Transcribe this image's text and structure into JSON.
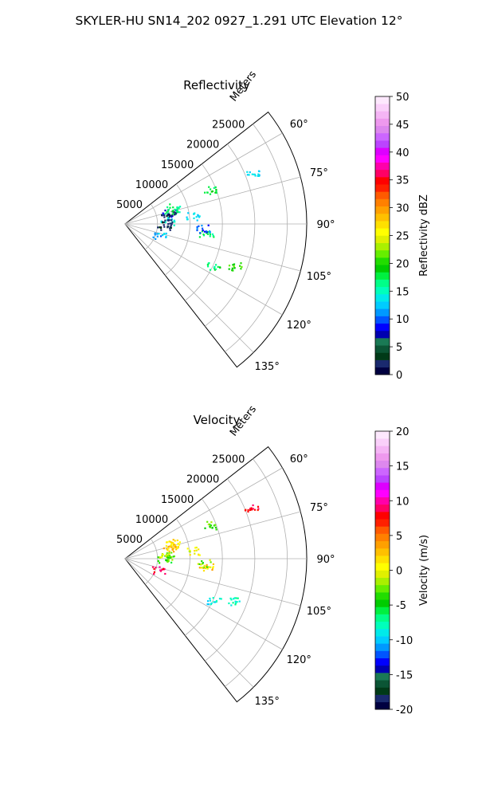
{
  "figure": {
    "suptitle": "SKYLER-HU  SN14_202  0927_1.291 UTC Elevation 12°"
  },
  "chart_data": [
    {
      "type": "polar-sector",
      "title": "Reflectivity",
      "radial_label": "Meters",
      "radial_ticks": [
        "5000",
        "10000",
        "15000",
        "20000",
        "25000"
      ],
      "radial_tick_values": [
        5000,
        10000,
        15000,
        20000,
        25000
      ],
      "rmax": 28000,
      "azimuth_ticks": [
        "60°",
        "75°",
        "90°",
        "105°",
        "120°",
        "135°"
      ],
      "azimuth_tick_values": [
        60,
        75,
        90,
        105,
        120,
        135
      ],
      "azimuth_range": [
        52,
        142
      ],
      "grid": true,
      "colorbar": {
        "label": "Reflectivity dBZ",
        "range": [
          0,
          50
        ],
        "ticks": [
          "0",
          "5",
          "10",
          "15",
          "20",
          "25",
          "30",
          "35",
          "40",
          "45",
          "50"
        ],
        "tick_values": [
          0,
          5,
          10,
          15,
          20,
          25,
          30,
          35,
          40,
          45,
          50
        ],
        "colors": [
          "#000040",
          "#1a2a6e",
          "#003a18",
          "#0b5535",
          "#1a7a55",
          "#0000b0",
          "#0000ff",
          "#0055ff",
          "#0099ff",
          "#00ccff",
          "#00eaea",
          "#00ffbb",
          "#00ff88",
          "#00f040",
          "#00cc00",
          "#22dd00",
          "#66ee00",
          "#aaf000",
          "#e0f000",
          "#ffff00",
          "#ffe000",
          "#ffc000",
          "#ffa000",
          "#ff8000",
          "#ff5a00",
          "#ff2000",
          "#ff0000",
          "#ff0066",
          "#ff00aa",
          "#ff00ff",
          "#dd00ff",
          "#bb44ff",
          "#cc66ff",
          "#dd88ee",
          "#ee99ee",
          "#f5b5f5",
          "#fad0fa",
          "#fde8fd"
        ]
      },
      "echoes": [
        {
          "azimuth": 75,
          "range": 7000,
          "value": 8
        },
        {
          "azimuth": 73,
          "range": 7300,
          "value": 17
        },
        {
          "azimuth": 77,
          "range": 6800,
          "value": 2
        },
        {
          "azimuth": 71,
          "range": 7800,
          "value": 16
        },
        {
          "azimuth": 86,
          "range": 6500,
          "value": 14
        },
        {
          "azimuth": 88,
          "range": 6200,
          "value": 1
        },
        {
          "azimuth": 92,
          "range": 6000,
          "value": 3
        },
        {
          "azimuth": 83,
          "range": 10500,
          "value": 13
        },
        {
          "azimuth": 68,
          "range": 14000,
          "value": 18
        },
        {
          "azimuth": 68,
          "range": 21000,
          "value": 13
        },
        {
          "azimuth": 96,
          "range": 12500,
          "value": 17
        },
        {
          "azimuth": 107,
          "range": 5500,
          "value": 12
        },
        {
          "azimuth": 115,
          "range": 15000,
          "value": 17
        },
        {
          "azimuth": 111,
          "range": 18000,
          "value": 20
        },
        {
          "azimuth": 93,
          "range": 12000,
          "value": 10
        }
      ]
    },
    {
      "type": "polar-sector",
      "title": "Velocity",
      "radial_label": "Meters",
      "radial_ticks": [
        "5000",
        "10000",
        "15000",
        "20000",
        "25000"
      ],
      "radial_tick_values": [
        5000,
        10000,
        15000,
        20000,
        25000
      ],
      "rmax": 28000,
      "azimuth_ticks": [
        "60°",
        "75°",
        "90°",
        "105°",
        "120°",
        "135°"
      ],
      "azimuth_tick_values": [
        60,
        75,
        90,
        105,
        120,
        135
      ],
      "azimuth_range": [
        52,
        142
      ],
      "grid": true,
      "colorbar": {
        "label": "Velocity (m/s)",
        "range": [
          -20,
          20
        ],
        "ticks": [
          "-20",
          "-15",
          "-10",
          "-5",
          "0",
          "5",
          "10",
          "15",
          "20"
        ],
        "tick_values": [
          -20,
          -15,
          -10,
          -5,
          0,
          5,
          10,
          15,
          20
        ],
        "colors": [
          "#000040",
          "#1a2a6e",
          "#003a18",
          "#0b5535",
          "#1a7a55",
          "#0000b0",
          "#0000ff",
          "#0055ff",
          "#0099ff",
          "#00ccff",
          "#00eaea",
          "#00ffbb",
          "#00ff88",
          "#00f040",
          "#00cc00",
          "#22dd00",
          "#66ee00",
          "#aaf000",
          "#e0f000",
          "#ffff00",
          "#ffe000",
          "#ffc000",
          "#ffa000",
          "#ff8000",
          "#ff5a00",
          "#ff2000",
          "#ff0000",
          "#ff0066",
          "#ff00aa",
          "#ff00ff",
          "#dd00ff",
          "#bb44ff",
          "#cc66ff",
          "#dd88ee",
          "#ee99ee",
          "#f5b5f5",
          "#fad0fa",
          "#fde8fd"
        ]
      },
      "echoes": [
        {
          "azimuth": 73,
          "range": 7300,
          "value": 2
        },
        {
          "azimuth": 71,
          "range": 7800,
          "value": 1
        },
        {
          "azimuth": 75,
          "range": 7000,
          "value": 3
        },
        {
          "azimuth": 86,
          "range": 6500,
          "value": -3
        },
        {
          "azimuth": 88,
          "range": 6200,
          "value": -1
        },
        {
          "azimuth": 92,
          "range": 6000,
          "value": -4
        },
        {
          "azimuth": 83,
          "range": 10500,
          "value": 0
        },
        {
          "azimuth": 68,
          "range": 14000,
          "value": -3
        },
        {
          "azimuth": 68,
          "range": 21000,
          "value": 8
        },
        {
          "azimuth": 96,
          "range": 12500,
          "value": 2
        },
        {
          "azimuth": 107,
          "range": 5500,
          "value": 9
        },
        {
          "azimuth": 115,
          "range": 15000,
          "value": -9
        },
        {
          "azimuth": 111,
          "range": 18000,
          "value": -8
        },
        {
          "azimuth": 93,
          "range": 12000,
          "value": -2
        }
      ]
    }
  ]
}
